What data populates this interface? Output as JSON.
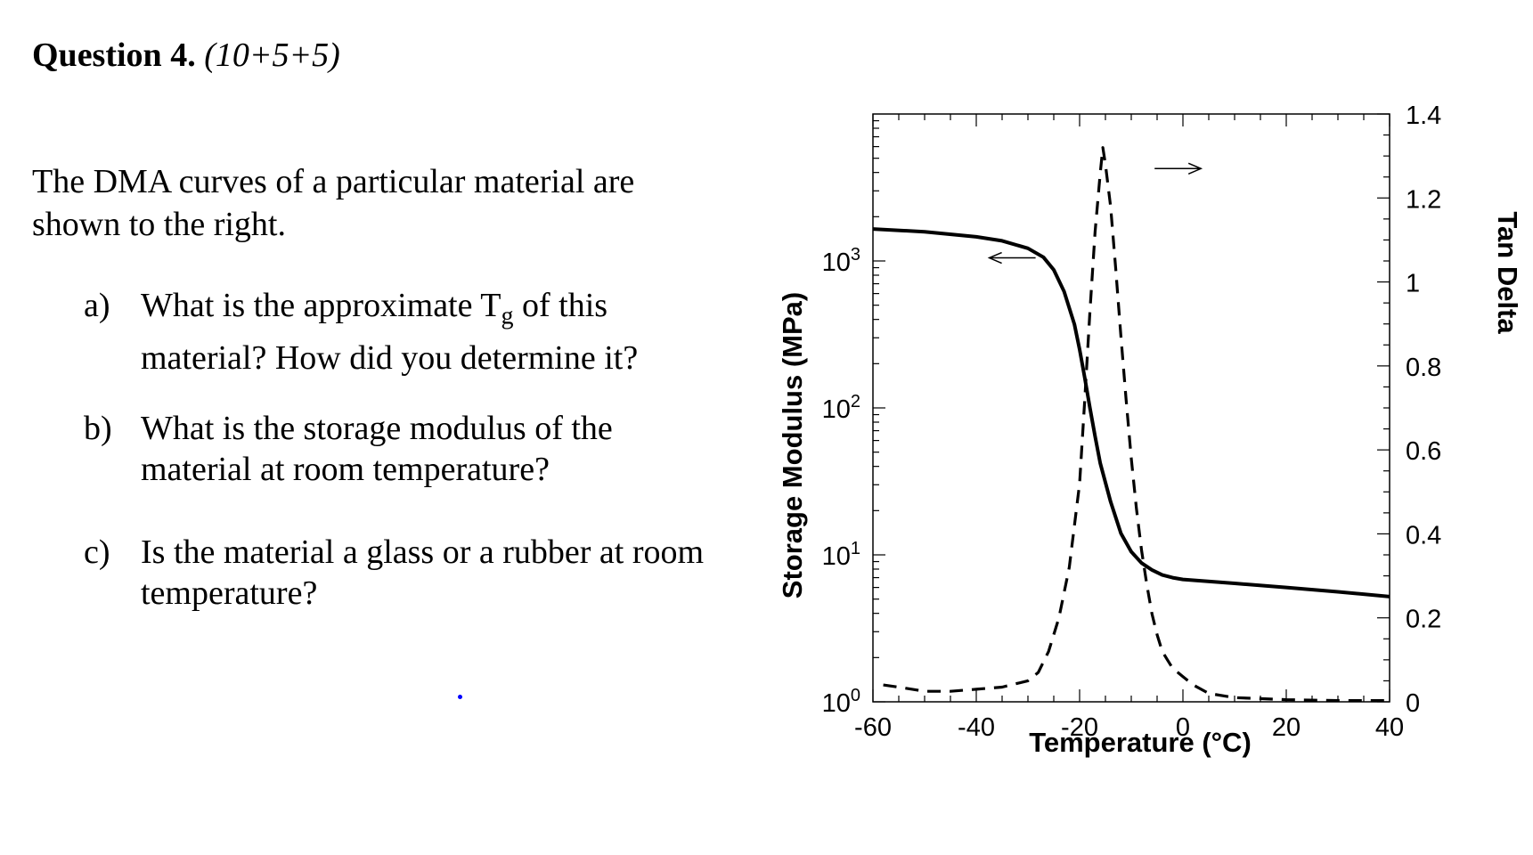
{
  "question": {
    "heading": "Question 4.",
    "points": "(10+5+5)",
    "intro_line1": "The DMA curves of a particular material are",
    "intro_line2": "shown to the right.",
    "items": [
      {
        "label": "a)",
        "line1_pre": "What is the approximate T",
        "line1_sub": "g",
        "line1_post": " of this",
        "line2": "material? How did you determine it?"
      },
      {
        "label": "b)",
        "line1": "What is the storage modulus of the",
        "line2": "material at room temperature?"
      },
      {
        "label": "c)",
        "line1": "Is the material a glass or a rubber at room",
        "line2": "temperature?"
      }
    ]
  },
  "chart_data": {
    "type": "line",
    "x_label": "Temperature (°C)",
    "x_ticks": [
      "-60",
      "-40",
      "-20",
      "0",
      "20",
      "40"
    ],
    "xlim": [
      -60,
      40
    ],
    "y_left_label": "Storage Modulus (MPa)",
    "y_left_scale": "log",
    "y_left_ticks": [
      {
        "base": "10",
        "exp": "0"
      },
      {
        "base": "10",
        "exp": "1"
      },
      {
        "base": "10",
        "exp": "2"
      },
      {
        "base": "10",
        "exp": "3"
      }
    ],
    "y_left_lim": [
      1,
      10000
    ],
    "y_right_label": "Tan Delta",
    "y_right_ticks": [
      "0",
      "0.2",
      "0.4",
      "0.6",
      "0.8",
      "1",
      "1.2",
      "1.4"
    ],
    "y_right_lim": [
      0,
      1.4
    ],
    "series": [
      {
        "axis": "left",
        "style": "solid",
        "x": [
          -60,
          -50,
          -40,
          -35,
          -30,
          -27,
          -25,
          -23,
          -21,
          -20,
          -19,
          -18,
          -17,
          -16,
          -14,
          -12,
          -10,
          -8,
          -6,
          -4,
          -2,
          0,
          10,
          20,
          30,
          40
        ],
        "y": [
          1650,
          1580,
          1460,
          1370,
          1220,
          1060,
          870,
          620,
          370,
          250,
          160,
          100,
          64,
          42,
          23,
          14,
          10.5,
          8.8,
          7.9,
          7.3,
          7.0,
          6.8,
          6.4,
          6.0,
          5.6,
          5.2
        ]
      },
      {
        "axis": "right",
        "style": "dashed",
        "x": [
          -58,
          -55,
          -50,
          -45,
          -40,
          -35,
          -30,
          -28,
          -26,
          -24,
          -22,
          -20,
          -19,
          -18,
          -17,
          -16,
          -15.5,
          -15,
          -14,
          -13,
          -12,
          -11,
          -10,
          -9,
          -8,
          -7,
          -6,
          -5,
          -4,
          -3,
          -2,
          0,
          2,
          5,
          10,
          20,
          30,
          40
        ],
        "y": [
          0.04,
          0.035,
          0.025,
          0.025,
          0.03,
          0.035,
          0.05,
          0.07,
          0.12,
          0.2,
          0.32,
          0.52,
          0.72,
          0.93,
          1.12,
          1.26,
          1.32,
          1.28,
          1.18,
          1.03,
          0.87,
          0.72,
          0.58,
          0.46,
          0.36,
          0.28,
          0.21,
          0.16,
          0.12,
          0.1,
          0.08,
          0.06,
          0.04,
          0.02,
          0.01,
          0.005,
          0.003,
          0.003
        ]
      }
    ],
    "arrows": [
      {
        "points_to": "left",
        "at_x": -33,
        "at_y_left": 1050
      },
      {
        "points_to": "right",
        "at_x": -1,
        "at_y_right": 1.27
      }
    ],
    "grid": false
  }
}
